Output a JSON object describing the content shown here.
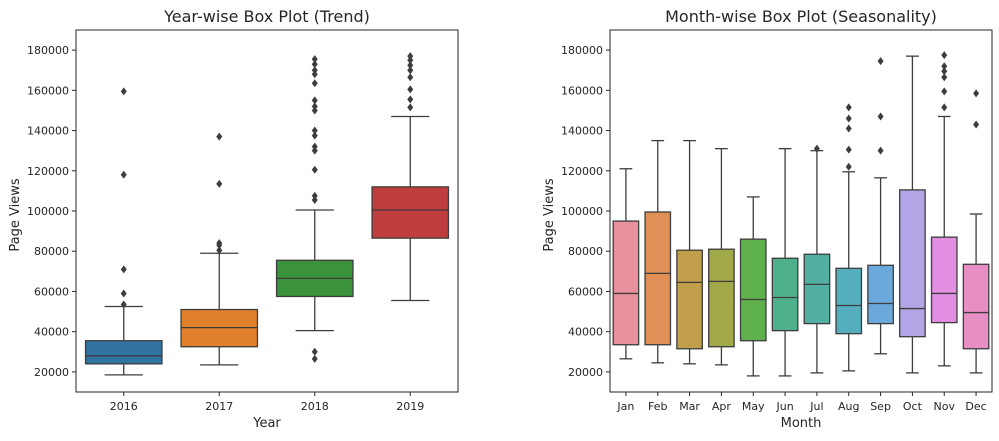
{
  "chart_data": [
    {
      "type": "box",
      "title": "Year-wise Box Plot (Trend)",
      "xlabel": "Year",
      "ylabel": "Page Views",
      "ylim": [
        10000,
        190000
      ],
      "yticks": [
        20000,
        40000,
        60000,
        80000,
        100000,
        120000,
        140000,
        160000,
        180000
      ],
      "grid": false,
      "categories": [
        "2016",
        "2017",
        "2018",
        "2019"
      ],
      "colors": [
        "#3274a1",
        "#e1812c",
        "#3a923a",
        "#c03d3e"
      ],
      "boxes": [
        {
          "min": 18500,
          "q1": 24000,
          "median": 28000,
          "q3": 35500,
          "max": 52500,
          "outliers": [
            53500,
            59000,
            71000,
            118000,
            159500
          ]
        },
        {
          "min": 23500,
          "q1": 32500,
          "median": 42000,
          "q3": 51000,
          "max": 79000,
          "outliers": [
            80500,
            83000,
            84000,
            113500,
            137000
          ]
        },
        {
          "min": 40500,
          "q1": 57500,
          "median": 66500,
          "q3": 75500,
          "max": 100500,
          "outliers": [
            26500,
            30000,
            105500,
            107500,
            120500,
            130000,
            132000,
            137500,
            140000,
            150000,
            152000,
            155000,
            163500,
            168000,
            170000,
            173000,
            175500
          ]
        },
        {
          "min": 55500,
          "q1": 86500,
          "median": 100500,
          "q3": 112000,
          "max": 147000,
          "outliers": [
            151500,
            155500,
            160500,
            166500,
            170000,
            172500,
            175000,
            177000
          ]
        }
      ]
    },
    {
      "type": "box",
      "title": "Month-wise Box Plot (Seasonality)",
      "xlabel": "Month",
      "ylabel": "Page Views",
      "ylim": [
        10000,
        190000
      ],
      "yticks": [
        20000,
        40000,
        60000,
        80000,
        100000,
        120000,
        140000,
        160000,
        180000
      ],
      "grid": false,
      "categories": [
        "Jan",
        "Feb",
        "Mar",
        "Apr",
        "May",
        "Jun",
        "Jul",
        "Aug",
        "Sep",
        "Oct",
        "Nov",
        "Dec"
      ],
      "colors": [
        "#e8909c",
        "#e08f56",
        "#c19e4a",
        "#a1a848",
        "#5fb14d",
        "#4eb18c",
        "#51b0a2",
        "#55aebd",
        "#6ba8dc",
        "#b4a4e6",
        "#e18ee3",
        "#e78fc4"
      ],
      "boxes": [
        {
          "min": 26500,
          "q1": 33500,
          "median": 59000,
          "q3": 95000,
          "max": 121000,
          "outliers": []
        },
        {
          "min": 24500,
          "q1": 33500,
          "median": 69000,
          "q3": 99500,
          "max": 135000,
          "outliers": []
        },
        {
          "min": 24000,
          "q1": 31500,
          "median": 64500,
          "q3": 80500,
          "max": 135000,
          "outliers": []
        },
        {
          "min": 23500,
          "q1": 32500,
          "median": 65000,
          "q3": 81000,
          "max": 131000,
          "outliers": []
        },
        {
          "min": 18000,
          "q1": 35500,
          "median": 56000,
          "q3": 86000,
          "max": 107000,
          "outliers": []
        },
        {
          "min": 18000,
          "q1": 40500,
          "median": 57000,
          "q3": 76500,
          "max": 131000,
          "outliers": []
        },
        {
          "min": 19500,
          "q1": 44000,
          "median": 63500,
          "q3": 78500,
          "max": 130000,
          "outliers": [
            131000
          ]
        },
        {
          "min": 20500,
          "q1": 39000,
          "median": 53000,
          "q3": 71500,
          "max": 119500,
          "outliers": [
            122000,
            130500,
            141000,
            146000,
            151500
          ]
        },
        {
          "min": 29000,
          "q1": 44000,
          "median": 54000,
          "q3": 73000,
          "max": 116500,
          "outliers": [
            130000,
            147000,
            174500
          ]
        },
        {
          "min": 19500,
          "q1": 37500,
          "median": 51500,
          "q3": 110500,
          "max": 177000,
          "outliers": []
        },
        {
          "min": 23000,
          "q1": 44500,
          "median": 59000,
          "q3": 87000,
          "max": 147000,
          "outliers": [
            151500,
            159500,
            166500,
            169500,
            172000,
            177500
          ]
        },
        {
          "min": 19500,
          "q1": 31500,
          "median": 49500,
          "q3": 73500,
          "max": 98500,
          "outliers": [
            143000,
            158500
          ]
        }
      ]
    }
  ]
}
